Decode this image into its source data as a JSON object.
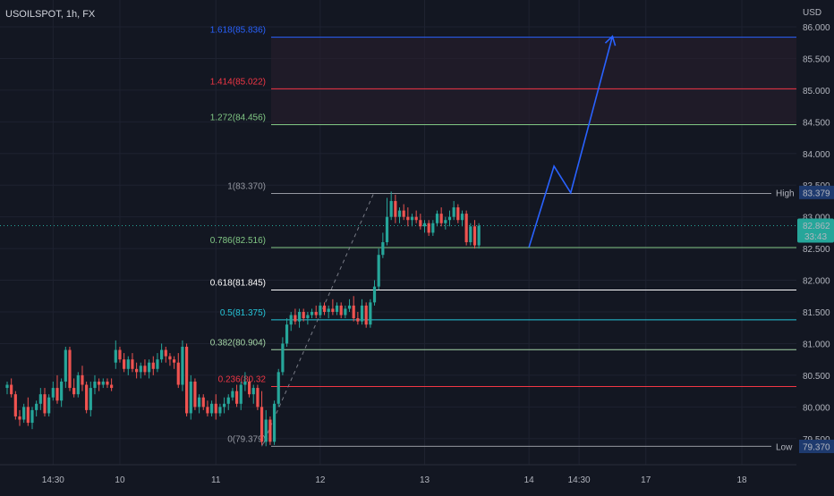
{
  "header": {
    "symbol_title": "USOILSPOT, 1h, FX"
  },
  "price_axis": {
    "currency": "USD"
  },
  "colors": {
    "background": "#131722",
    "grid": "#1e2230",
    "up": "#26a69a",
    "down": "#ef5350",
    "projection": "#2962ff",
    "fib_zone": "#2a1f2e"
  },
  "chart_data": {
    "type": "candlestick",
    "ylim": [
      79.3,
      86.25
    ],
    "y_ticks": [
      {
        "value": 86.0,
        "label": "86.000"
      },
      {
        "value": 85.5,
        "label": "85.500"
      },
      {
        "value": 85.0,
        "label": "85.000"
      },
      {
        "value": 84.5,
        "label": "84.500"
      },
      {
        "value": 84.0,
        "label": "84.000"
      },
      {
        "value": 83.5,
        "label": "83.500"
      },
      {
        "value": 83.0,
        "label": "83.000"
      },
      {
        "value": 82.5,
        "label": "82.500"
      },
      {
        "value": 82.0,
        "label": "82.000"
      },
      {
        "value": 81.5,
        "label": "81.500"
      },
      {
        "value": 81.0,
        "label": "81.000"
      },
      {
        "value": 80.5,
        "label": "80.500"
      },
      {
        "value": 80.0,
        "label": "80.000"
      },
      {
        "value": 79.5,
        "label": "79.500"
      }
    ],
    "x_ticks": [
      {
        "bar": 11,
        "label": "14:30"
      },
      {
        "bar": 27,
        "label": "10"
      },
      {
        "bar": 50,
        "label": "11"
      },
      {
        "bar": 75,
        "label": "12"
      },
      {
        "bar": 100,
        "label": "13"
      },
      {
        "bar": 125,
        "label": "14"
      },
      {
        "bar": 137,
        "label": "14:30"
      },
      {
        "bar": 153,
        "label": "17"
      },
      {
        "bar": 176,
        "label": "18"
      }
    ],
    "fib_levels": [
      {
        "ratio": 1.618,
        "label": "1.618(85.836)",
        "price": 85.836,
        "color": "#2962ff"
      },
      {
        "ratio": 1.414,
        "label": "1.414(85.022)",
        "price": 85.022,
        "color": "#f23645"
      },
      {
        "ratio": 1.272,
        "label": "1.272(84.456)",
        "price": 84.456,
        "color": "#81c784"
      },
      {
        "ratio": 1,
        "label": "1(83.370)",
        "price": 83.37,
        "color": "#9598a1"
      },
      {
        "ratio": 0.786,
        "label": "0.786(82.516)",
        "price": 82.516,
        "color": "#81c784"
      },
      {
        "ratio": 0.618,
        "label": "0.618(81.845)",
        "price": 81.845,
        "color": "#ffffff"
      },
      {
        "ratio": 0.5,
        "label": "0.5(81.375)",
        "price": 81.375,
        "color": "#26c6da"
      },
      {
        "ratio": 0.382,
        "label": "0.382(80.904)",
        "price": 80.904,
        "color": "#a5d6a7"
      },
      {
        "ratio": 0.236,
        "label": "0.236(80.32",
        "price": 80.323,
        "color": "#f23645"
      },
      {
        "ratio": 0,
        "label": "0(79.379)",
        "price": 79.379,
        "color": "#9598a1"
      }
    ],
    "price_tags": [
      {
        "name": "High",
        "value": "83.379",
        "price": 83.379
      },
      {
        "name": "Low",
        "value": "79.370",
        "price": 79.37
      }
    ],
    "current_price": {
      "value": "82.862",
      "countdown": "33:43",
      "price": 82.862
    },
    "projection_path": [
      {
        "bar": 125,
        "price": 82.52
      },
      {
        "bar": 131,
        "price": 83.8
      },
      {
        "bar": 135,
        "price": 83.38
      },
      {
        "bar": 145,
        "price": 85.85
      }
    ],
    "fib_trend_line": [
      {
        "bar": 61,
        "price": 79.38
      },
      {
        "bar": 88,
        "price": 83.4
      }
    ],
    "candles": [
      [
        0,
        80.3,
        80.4,
        80.2,
        80.35
      ],
      [
        1,
        80.35,
        80.45,
        80.15,
        80.2
      ],
      [
        2,
        80.2,
        80.25,
        79.8,
        79.85
      ],
      [
        3,
        79.85,
        79.95,
        79.7,
        79.8
      ],
      [
        4,
        79.8,
        80.05,
        79.75,
        80.0
      ],
      [
        5,
        80.0,
        80.15,
        79.7,
        79.75
      ],
      [
        6,
        79.75,
        80.0,
        79.65,
        79.95
      ],
      [
        7,
        79.95,
        80.1,
        79.85,
        80.05
      ],
      [
        8,
        80.05,
        80.3,
        79.95,
        80.2
      ],
      [
        9,
        80.2,
        80.3,
        79.85,
        79.9
      ],
      [
        10,
        79.9,
        80.2,
        79.85,
        80.15
      ],
      [
        11,
        80.15,
        80.4,
        80.1,
        80.3
      ],
      [
        12,
        80.3,
        80.5,
        80.05,
        80.1
      ],
      [
        13,
        80.1,
        80.45,
        80.0,
        80.4
      ],
      [
        14,
        80.4,
        80.95,
        80.3,
        80.9
      ],
      [
        15,
        80.9,
        80.95,
        80.25,
        80.3
      ],
      [
        16,
        80.3,
        80.45,
        80.15,
        80.2
      ],
      [
        17,
        80.2,
        80.55,
        80.15,
        80.5
      ],
      [
        18,
        80.5,
        80.65,
        80.25,
        80.35
      ],
      [
        19,
        80.35,
        80.4,
        79.9,
        79.95
      ],
      [
        20,
        79.95,
        80.4,
        79.85,
        80.3
      ],
      [
        21,
        80.3,
        80.5,
        80.2,
        80.4
      ],
      [
        22,
        80.4,
        80.45,
        80.25,
        80.35
      ],
      [
        23,
        80.35,
        80.45,
        80.3,
        80.4
      ],
      [
        24,
        80.4,
        80.45,
        80.3,
        80.35
      ],
      [
        25,
        80.35,
        80.45,
        80.25,
        80.3
      ],
      [
        26,
        80.7,
        81.05,
        80.6,
        80.9
      ],
      [
        27,
        80.9,
        80.95,
        80.7,
        80.75
      ],
      [
        28,
        80.75,
        80.85,
        80.55,
        80.6
      ],
      [
        29,
        80.6,
        80.8,
        80.5,
        80.75
      ],
      [
        30,
        80.75,
        80.85,
        80.55,
        80.6
      ],
      [
        31,
        80.6,
        80.7,
        80.45,
        80.55
      ],
      [
        32,
        80.55,
        80.7,
        80.45,
        80.65
      ],
      [
        33,
        80.65,
        80.75,
        80.5,
        80.55
      ],
      [
        34,
        80.55,
        80.75,
        80.45,
        80.7
      ],
      [
        35,
        80.7,
        80.8,
        80.5,
        80.6
      ],
      [
        36,
        80.6,
        80.85,
        80.55,
        80.75
      ],
      [
        37,
        80.75,
        81.0,
        80.7,
        80.9
      ],
      [
        38,
        80.9,
        80.95,
        80.7,
        80.8
      ],
      [
        39,
        80.8,
        80.85,
        80.65,
        80.75
      ],
      [
        40,
        80.75,
        80.8,
        80.6,
        80.7
      ],
      [
        41,
        80.7,
        80.85,
        80.3,
        80.35
      ],
      [
        42,
        80.35,
        81.05,
        80.25,
        80.95
      ],
      [
        43,
        80.95,
        81.0,
        79.85,
        79.9
      ],
      [
        44,
        79.9,
        80.5,
        79.8,
        80.4
      ],
      [
        45,
        80.4,
        80.45,
        79.95,
        80.0
      ],
      [
        46,
        80.0,
        80.2,
        79.9,
        80.15
      ],
      [
        47,
        80.15,
        80.2,
        79.95,
        80.0
      ],
      [
        48,
        80.0,
        80.1,
        79.85,
        79.9
      ],
      [
        49,
        79.9,
        80.1,
        79.85,
        80.05
      ],
      [
        50,
        80.05,
        80.2,
        79.8,
        79.9
      ],
      [
        51,
        79.9,
        80.05,
        79.85,
        80.0
      ],
      [
        52,
        80.0,
        80.15,
        79.9,
        80.05
      ],
      [
        53,
        80.05,
        80.2,
        79.95,
        80.15
      ],
      [
        54,
        80.15,
        80.3,
        80.1,
        80.25
      ],
      [
        55,
        80.25,
        80.35,
        80.0,
        80.05
      ],
      [
        56,
        80.05,
        80.4,
        79.95,
        80.35
      ],
      [
        57,
        80.35,
        80.55,
        80.25,
        80.4
      ],
      [
        58,
        80.4,
        80.45,
        80.15,
        80.2
      ],
      [
        59,
        80.2,
        80.35,
        80.05,
        80.3
      ],
      [
        60,
        80.3,
        80.35,
        79.95,
        80.0
      ],
      [
        61,
        80.0,
        80.25,
        79.4,
        79.45
      ],
      [
        62,
        79.45,
        79.95,
        79.38,
        79.8
      ],
      [
        63,
        79.8,
        79.85,
        79.4,
        79.45
      ],
      [
        64,
        79.45,
        80.1,
        79.4,
        80.05
      ],
      [
        65,
        80.05,
        80.6,
        80.0,
        80.55
      ],
      [
        66,
        80.55,
        81.1,
        80.5,
        81.0
      ],
      [
        67,
        81.0,
        81.4,
        80.95,
        81.3
      ],
      [
        68,
        81.3,
        81.5,
        81.2,
        81.45
      ],
      [
        69,
        81.45,
        81.55,
        81.3,
        81.35
      ],
      [
        70,
        81.35,
        81.55,
        81.25,
        81.5
      ],
      [
        71,
        81.5,
        81.55,
        81.35,
        81.4
      ],
      [
        72,
        81.4,
        81.5,
        81.3,
        81.45
      ],
      [
        73,
        81.45,
        81.55,
        81.4,
        81.5
      ],
      [
        74,
        81.5,
        81.6,
        81.4,
        81.45
      ],
      [
        75,
        81.45,
        81.65,
        81.4,
        81.6
      ],
      [
        76,
        81.6,
        81.65,
        81.45,
        81.5
      ],
      [
        77,
        81.5,
        81.6,
        81.4,
        81.55
      ],
      [
        78,
        81.55,
        81.7,
        81.45,
        81.5
      ],
      [
        79,
        81.5,
        81.65,
        81.45,
        81.6
      ],
      [
        80,
        81.6,
        81.65,
        81.4,
        81.45
      ],
      [
        81,
        81.45,
        81.6,
        81.4,
        81.55
      ],
      [
        82,
        81.55,
        81.7,
        81.5,
        81.6
      ],
      [
        83,
        81.6,
        81.75,
        81.35,
        81.4
      ],
      [
        84,
        81.4,
        81.5,
        81.3,
        81.35
      ],
      [
        85,
        81.35,
        81.7,
        81.3,
        81.6
      ],
      [
        86,
        81.6,
        81.65,
        81.25,
        81.3
      ],
      [
        87,
        81.3,
        81.7,
        81.25,
        81.65
      ],
      [
        88,
        81.65,
        82.0,
        81.6,
        81.9
      ],
      [
        89,
        81.9,
        82.5,
        81.85,
        82.4
      ],
      [
        90,
        82.4,
        82.75,
        82.35,
        82.6
      ],
      [
        91,
        82.6,
        83.3,
        82.55,
        83.0
      ],
      [
        92,
        83.0,
        83.4,
        82.95,
        83.25
      ],
      [
        93,
        83.25,
        83.35,
        82.9,
        83.0
      ],
      [
        94,
        83.0,
        83.15,
        82.9,
        83.1
      ],
      [
        95,
        83.1,
        83.2,
        82.95,
        83.0
      ],
      [
        96,
        83.0,
        83.15,
        82.85,
        82.95
      ],
      [
        97,
        82.95,
        83.05,
        82.85,
        83.0
      ],
      [
        98,
        83.0,
        83.1,
        82.9,
        82.95
      ],
      [
        99,
        82.95,
        83.05,
        82.8,
        82.85
      ],
      [
        100,
        82.85,
        82.95,
        82.75,
        82.9
      ],
      [
        101,
        82.9,
        82.95,
        82.7,
        82.75
      ],
      [
        102,
        82.75,
        82.95,
        82.7,
        82.9
      ],
      [
        103,
        82.9,
        83.1,
        82.85,
        83.05
      ],
      [
        104,
        83.05,
        83.15,
        82.85,
        82.9
      ],
      [
        105,
        82.9,
        83.0,
        82.8,
        82.95
      ],
      [
        106,
        82.95,
        83.1,
        82.85,
        83.0
      ],
      [
        107,
        83.0,
        83.25,
        82.95,
        83.15
      ],
      [
        108,
        83.15,
        83.2,
        82.9,
        82.95
      ],
      [
        109,
        82.95,
        83.1,
        82.85,
        83.05
      ],
      [
        110,
        83.05,
        83.1,
        82.55,
        82.6
      ],
      [
        111,
        82.6,
        82.9,
        82.55,
        82.85
      ],
      [
        112,
        82.85,
        82.95,
        82.5,
        82.55
      ],
      [
        113,
        82.55,
        82.9,
        82.5,
        82.86
      ]
    ]
  }
}
